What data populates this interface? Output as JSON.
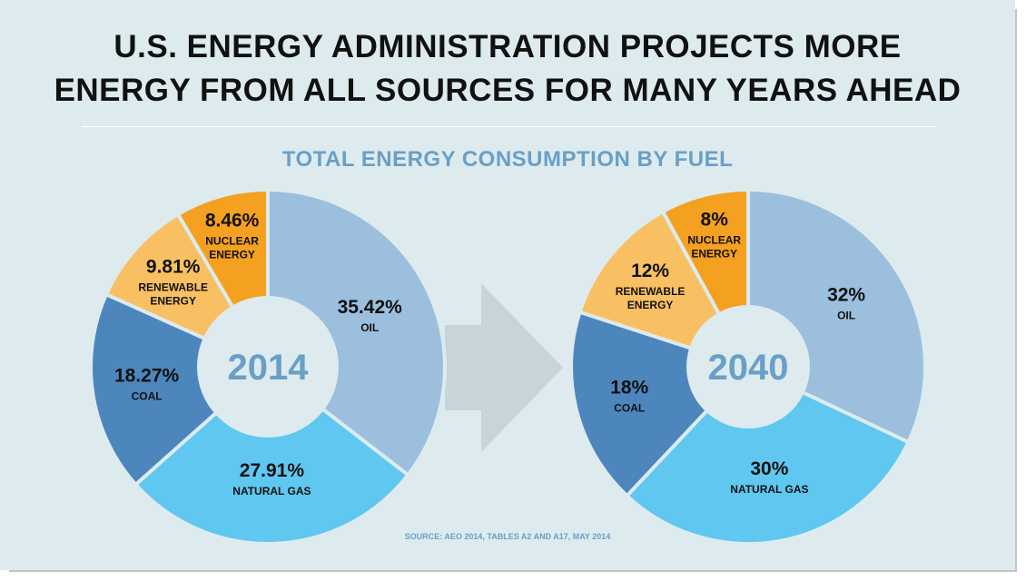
{
  "header": {
    "title_line1": "U.S. ENERGY ADMINISTRATION PROJECTS MORE",
    "title_line2": "ENERGY FROM ALL SOURCES FOR MANY YEARS AHEAD",
    "subtitle": "TOTAL ENERGY CONSUMPTION BY FUEL"
  },
  "footer": {
    "source": "SOURCE: AEO 2014, TABLES A2 AND A17, MAY 2014"
  },
  "colors": {
    "oil": "#9bbfdd",
    "natural_gas": "#5fc7f0",
    "coal": "#4d86bd",
    "renewable": "#f8c063",
    "nuclear": "#f4a020",
    "center": "#ddebee",
    "arrow": "#c7d4d8"
  },
  "chart_data": [
    {
      "type": "pie",
      "center_label": "2014",
      "slices": [
        {
          "label_lines": [
            "OIL"
          ],
          "value": 35.42,
          "display": "35.42%",
          "color_key": "oil"
        },
        {
          "label_lines": [
            "NATURAL GAS"
          ],
          "value": 27.91,
          "display": "27.91%",
          "color_key": "natural_gas"
        },
        {
          "label_lines": [
            "COAL"
          ],
          "value": 18.27,
          "display": "18.27%",
          "color_key": "coal"
        },
        {
          "label_lines": [
            "RENEWABLE",
            "ENERGY"
          ],
          "value": 9.81,
          "display": "9.81%",
          "color_key": "renewable"
        },
        {
          "label_lines": [
            "NUCLEAR",
            "ENERGY"
          ],
          "value": 8.46,
          "display": "8.46%",
          "color_key": "nuclear"
        }
      ]
    },
    {
      "type": "pie",
      "center_label": "2040",
      "slices": [
        {
          "label_lines": [
            "OIL"
          ],
          "value": 32,
          "display": "32%",
          "color_key": "oil"
        },
        {
          "label_lines": [
            "NATURAL GAS"
          ],
          "value": 30,
          "display": "30%",
          "color_key": "natural_gas"
        },
        {
          "label_lines": [
            "COAL"
          ],
          "value": 18,
          "display": "18%",
          "color_key": "coal"
        },
        {
          "label_lines": [
            "RENEWABLE",
            "ENERGY"
          ],
          "value": 12,
          "display": "12%",
          "color_key": "renewable"
        },
        {
          "label_lines": [
            "NUCLEAR",
            "ENERGY"
          ],
          "value": 8,
          "display": "8%",
          "color_key": "nuclear"
        }
      ]
    }
  ]
}
